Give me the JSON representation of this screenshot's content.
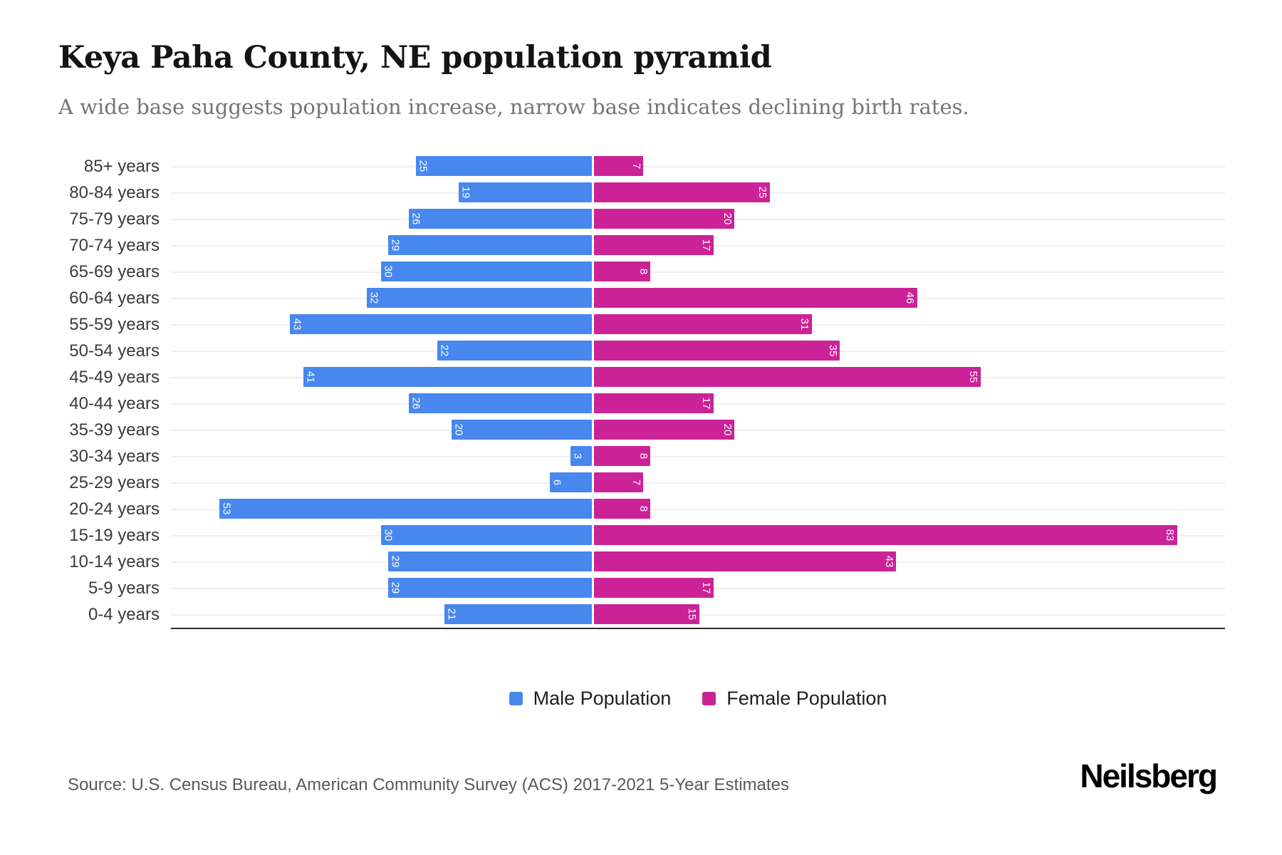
{
  "header": {
    "title": "Keya Paha County, NE population pyramid",
    "subtitle": "A wide base suggests population increase, narrow base indicates declining birth rates."
  },
  "chart_data": {
    "type": "bar",
    "variant": "population-pyramid",
    "categories": [
      "85+ years",
      "80-84 years",
      "75-79 years",
      "70-74 years",
      "65-69 years",
      "60-64 years",
      "55-59 years",
      "50-54 years",
      "45-49 years",
      "40-44 years",
      "35-39 years",
      "30-34 years",
      "25-29 years",
      "20-24 years",
      "15-19 years",
      "10-14 years",
      "5-9 years",
      "0-4 years"
    ],
    "series": [
      {
        "name": "Male Population",
        "side": "left",
        "color": "#4787EE",
        "axis_max": 60,
        "values": [
          25,
          19,
          26,
          29,
          30,
          32,
          43,
          22,
          41,
          26,
          20,
          3,
          6,
          53,
          30,
          29,
          29,
          21
        ]
      },
      {
        "name": "Female Population",
        "side": "right",
        "color": "#CB2397",
        "axis_max": 90,
        "values": [
          7,
          25,
          20,
          17,
          8,
          46,
          31,
          35,
          55,
          17,
          20,
          8,
          7,
          8,
          83,
          43,
          17,
          15
        ]
      }
    ],
    "value_labels": "inside bar end, rotated 90deg, white",
    "grid": true,
    "legend_position": "bottom-center"
  },
  "legend": {
    "male_label": "Male Population",
    "female_label": "Female Population"
  },
  "footer": {
    "source": "Source: U.S. Census Bureau, American Community Survey (ACS) 2017-2021 5-Year Estimates",
    "brand": "Neilsberg"
  },
  "colors": {
    "male": "#4787EE",
    "female": "#CB2397",
    "axis": "#2b2b2b",
    "gridline": "#efefef"
  }
}
